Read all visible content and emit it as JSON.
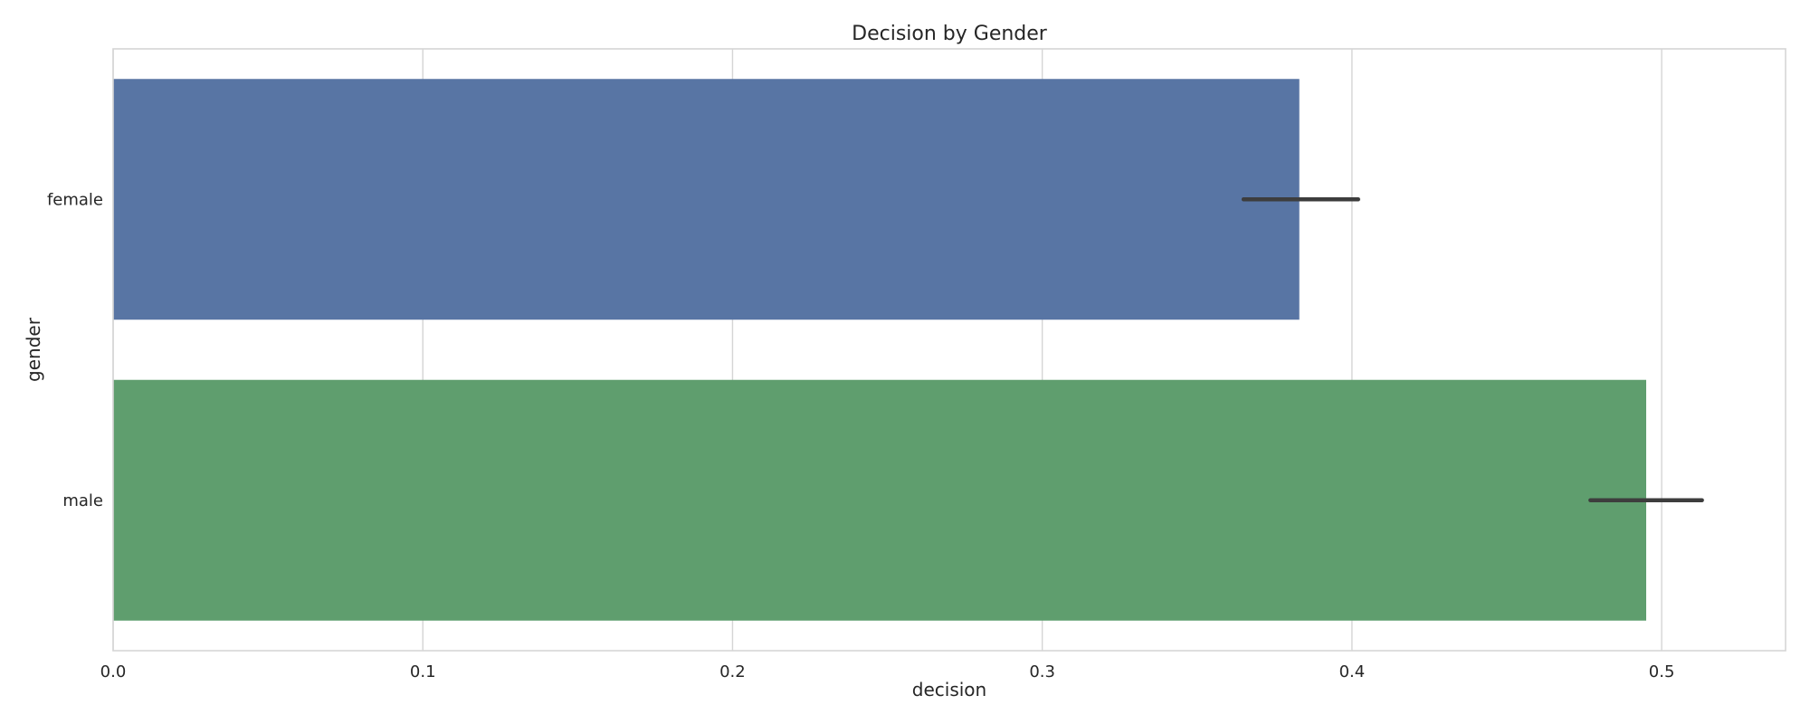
{
  "chart_data": {
    "type": "bar",
    "orientation": "horizontal",
    "title": "Decision by Gender",
    "xlabel": "decision",
    "ylabel": "gender",
    "categories": [
      "female",
      "male"
    ],
    "values": [
      0.383,
      0.495
    ],
    "error_bars": [
      [
        0.365,
        0.402
      ],
      [
        0.477,
        0.513
      ]
    ],
    "colors": [
      "#5875a4",
      "#5f9e6e"
    ],
    "xlim": [
      0.0,
      0.54
    ],
    "xticks": [
      0.0,
      0.1,
      0.2,
      0.3,
      0.4,
      0.5
    ],
    "xtick_labels": [
      "0.0",
      "0.1",
      "0.2",
      "0.3",
      "0.4",
      "0.5"
    ],
    "grid": true,
    "grid_axis": "x",
    "legend": false
  }
}
